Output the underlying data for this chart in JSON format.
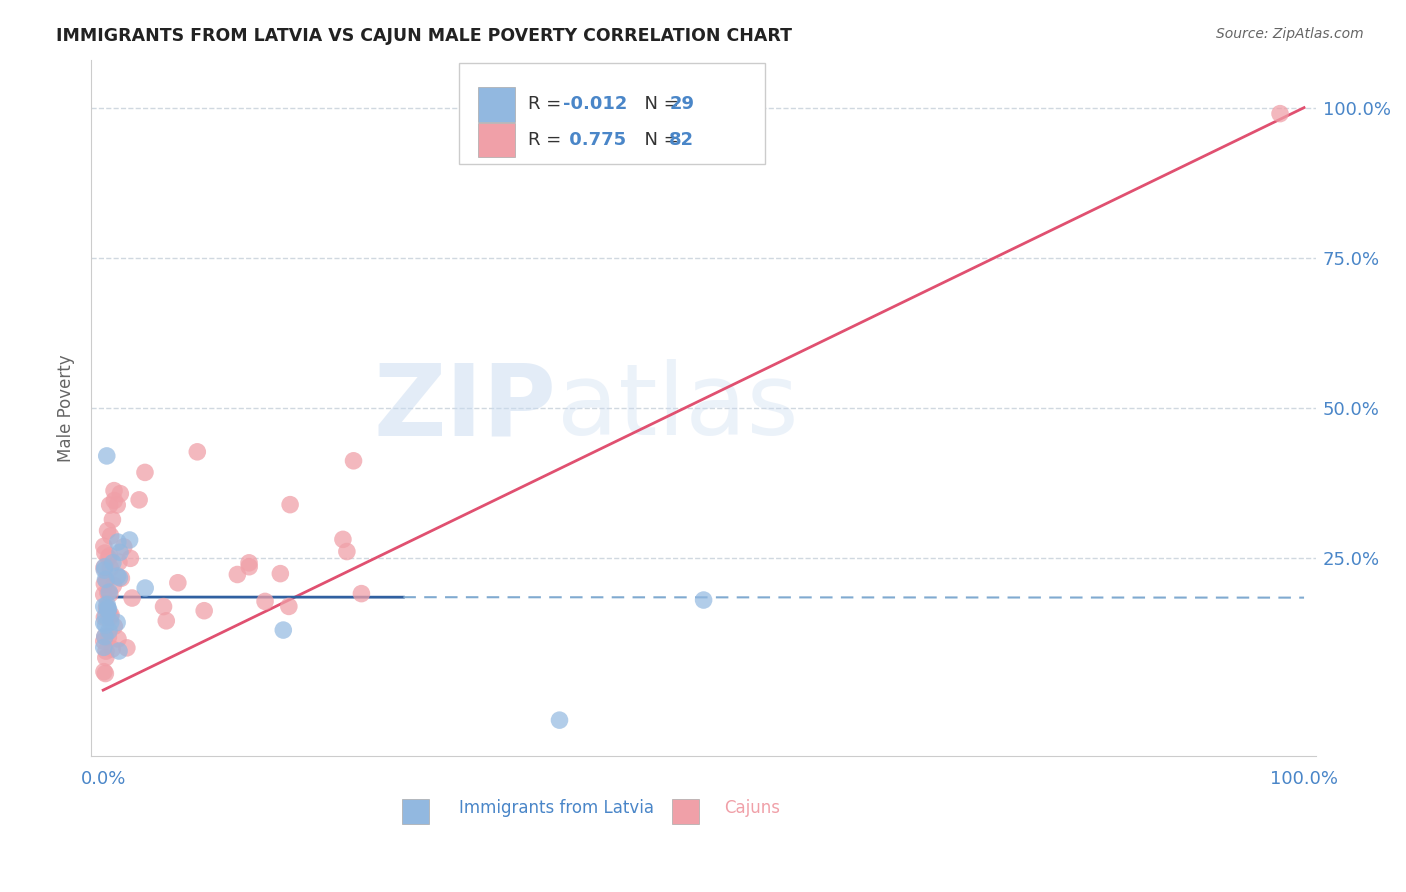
{
  "title": "IMMIGRANTS FROM LATVIA VS CAJUN MALE POVERTY CORRELATION CHART",
  "source": "Source: ZipAtlas.com",
  "ylabel": "Male Poverty",
  "legend_blue_r": "-0.012",
  "legend_blue_n": "29",
  "legend_pink_r": "0.775",
  "legend_pink_n": "82",
  "legend_blue_label": "Immigrants from Latvia",
  "legend_pink_label": "Cajuns",
  "blue_color": "#92b8e0",
  "pink_color": "#f0a0a8",
  "regression_pink_color": "#e05070",
  "regression_blue_solid_color": "#3060a0",
  "regression_blue_dashed_color": "#80aad0",
  "watermark_zip": "ZIP",
  "watermark_atlas": "atlas",
  "background_color": "#ffffff",
  "grid_color": "#d0d8e0",
  "axis_color": "#4a86c8",
  "title_color": "#222222",
  "source_color": "#666666",
  "legend_text_color": "#4a86c8"
}
